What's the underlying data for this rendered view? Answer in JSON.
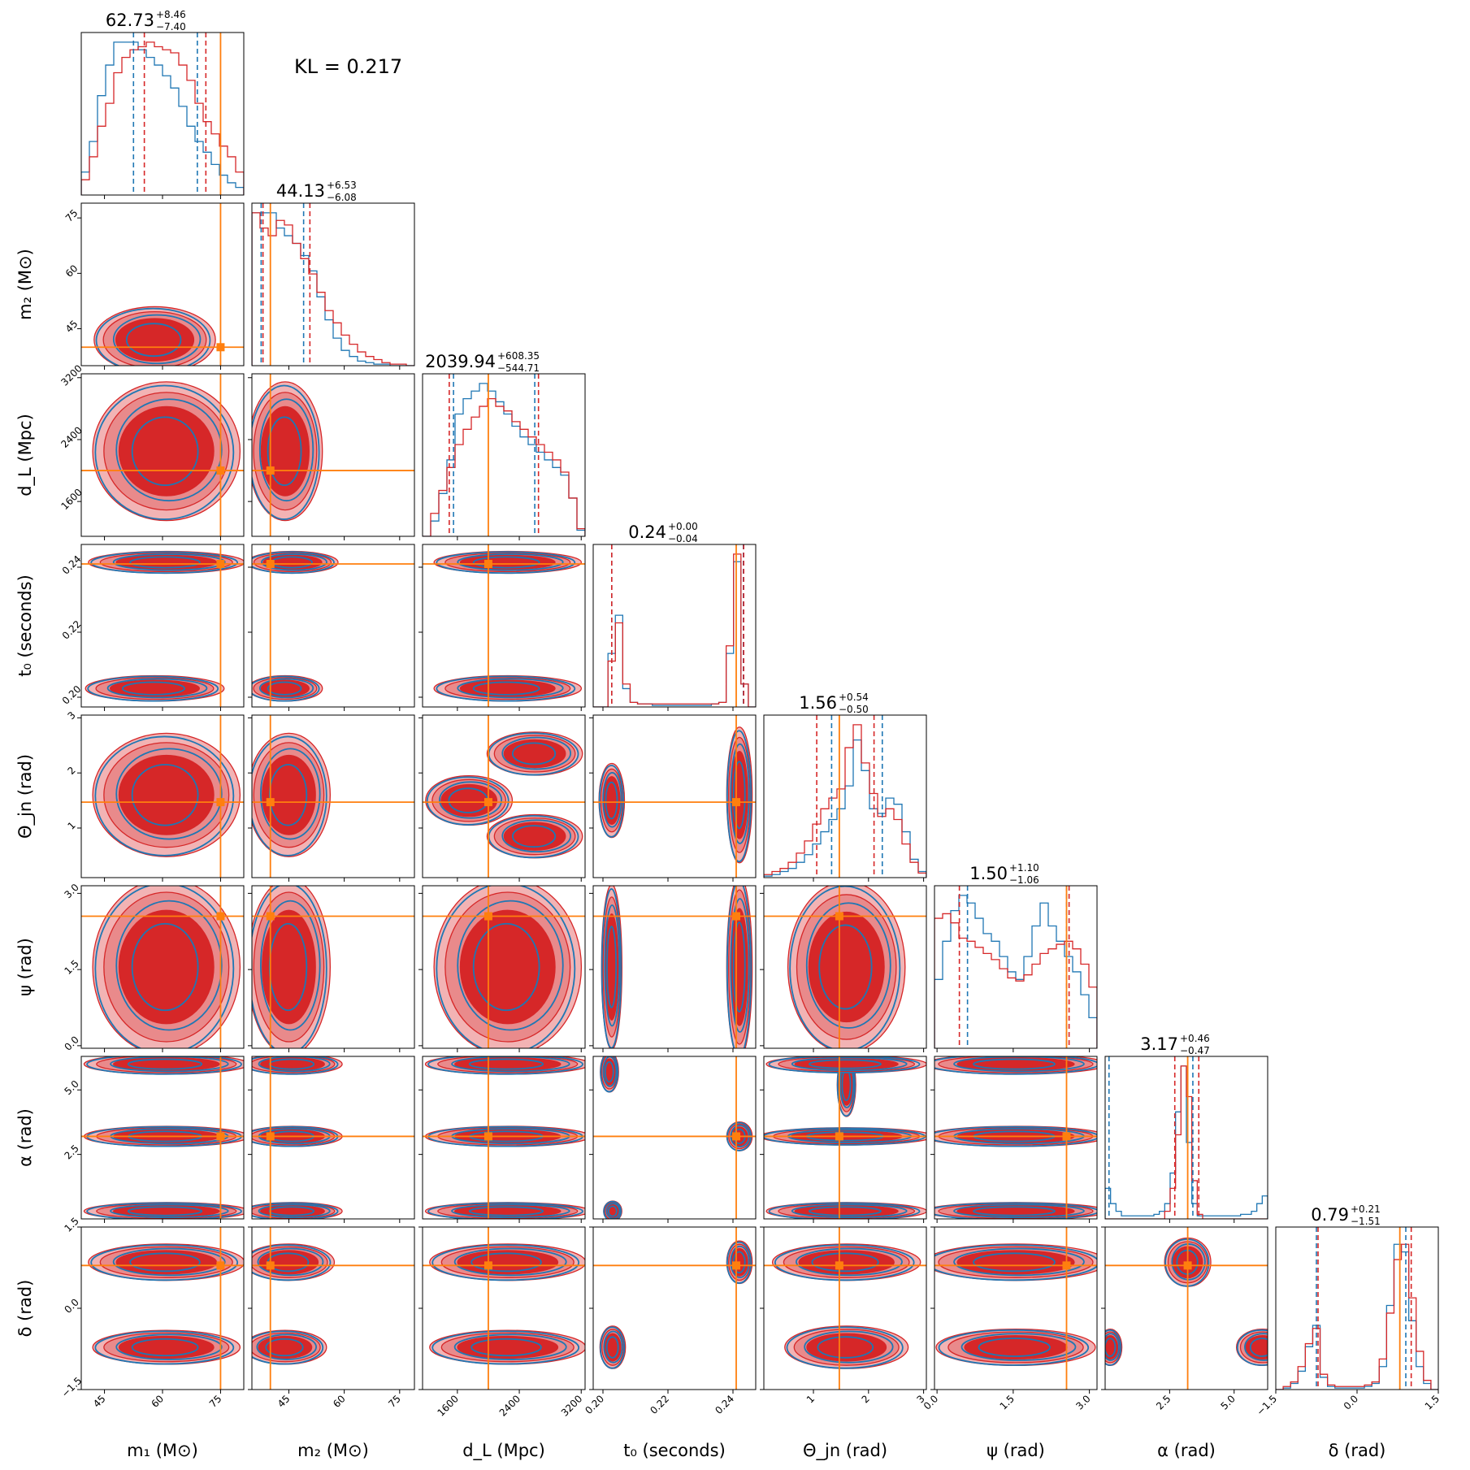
{
  "chart_data": {
    "type": "corner",
    "kl_label": "KL = 0.217",
    "colors": {
      "series_a": "#d62728",
      "series_b": "#1f77b4",
      "truth": "#ff7f0e"
    },
    "parameters": [
      {
        "key": "m1",
        "label": "m₁ (M⊙)",
        "lim": [
          39,
          81
        ],
        "ticks": [
          45,
          60,
          75
        ],
        "tick_labels": [
          "45",
          "60",
          "75"
        ],
        "truth": 75,
        "title": "62.73",
        "plus": "+8.46",
        "minus": "−7.40",
        "q_a": [
          55.3,
          62.7,
          71.2
        ],
        "q_b": [
          52.5,
          60.5,
          69.0
        ]
      },
      {
        "key": "m2",
        "label": "m₂ (M⊙)",
        "lim": [
          35,
          79
        ],
        "ticks": [
          45,
          60,
          75
        ],
        "tick_labels": [
          "45",
          "60",
          "75"
        ],
        "truth": 40,
        "title": "44.13",
        "plus": "+6.53",
        "minus": "−6.08",
        "q_a": [
          38.0,
          44.1,
          50.7
        ],
        "q_b": [
          37.5,
          43.0,
          49.0
        ]
      },
      {
        "key": "dL",
        "label": "d_L (Mpc)",
        "lim": [
          1150,
          3250
        ],
        "ticks": [
          1600,
          2400,
          3200
        ],
        "tick_labels": [
          "1600",
          "2400",
          "3200"
        ],
        "truth": 2000,
        "title": "2039.94",
        "plus": "+608.35",
        "minus": "−544.71",
        "q_a": [
          1495,
          2040,
          2648
        ],
        "q_b": [
          1550,
          2000,
          2600
        ]
      },
      {
        "key": "t0",
        "label": "t₀ (seconds)",
        "lim": [
          0.197,
          0.247
        ],
        "ticks": [
          0.2,
          0.22,
          0.24
        ],
        "tick_labels": [
          "0.20",
          "0.22",
          "0.24"
        ],
        "truth": 0.241,
        "title": "0.24",
        "plus": "+0.00",
        "minus": "−0.04",
        "q_a": [
          0.2027,
          0.2425,
          0.2433
        ],
        "q_b": [
          0.2027,
          0.242,
          0.2432
        ]
      },
      {
        "key": "theta",
        "label": "Θ_jn (rad)",
        "lim": [
          0.1,
          3.05
        ],
        "ticks": [
          1,
          2,
          3
        ],
        "tick_labels": [
          "1",
          "2",
          "3"
        ],
        "truth": 1.47,
        "title": "1.56",
        "plus": "+0.54",
        "minus": "−0.50",
        "q_a": [
          1.06,
          1.56,
          2.1
        ],
        "q_b": [
          1.33,
          1.62,
          2.25
        ]
      },
      {
        "key": "psi",
        "label": "ψ (rad)",
        "lim": [
          -0.05,
          3.15
        ],
        "ticks": [
          0.0,
          1.5,
          3.0
        ],
        "tick_labels": [
          "0.0",
          "1.5",
          "3.0"
        ],
        "truth": 2.55,
        "title": "1.50",
        "plus": "+1.10",
        "minus": "−1.06",
        "q_a": [
          0.44,
          1.5,
          2.6
        ],
        "q_b": [
          0.6,
          1.5,
          2.55
        ]
      },
      {
        "key": "alpha",
        "label": "α (rad)",
        "lim": [
          0.0,
          6.3
        ],
        "ticks": [
          2.5,
          5.0
        ],
        "tick_labels": [
          "2.5",
          "5.0"
        ],
        "truth": 3.2,
        "title": "3.17",
        "plus": "+0.46",
        "minus": "−0.47",
        "q_a": [
          2.7,
          3.17,
          3.63
        ],
        "q_b": [
          0.15,
          3.15,
          3.4
        ]
      },
      {
        "key": "delta",
        "label": "δ (rad)",
        "lim": [
          -1.5,
          1.5
        ],
        "ticks": [
          -1.5,
          0.0,
          1.5
        ],
        "tick_labels": [
          "−1.5",
          "0.0",
          "1.5"
        ],
        "truth": 0.79,
        "title": "0.79",
        "plus": "+0.21",
        "minus": "−1.51",
        "q_a": [
          -0.72,
          0.79,
          1.0
        ],
        "q_b": [
          -0.75,
          0.75,
          0.9
        ]
      }
    ],
    "histograms": [
      {
        "a": [
          0.1,
          0.25,
          0.45,
          0.6,
          0.8,
          0.9,
          0.95,
          0.97,
          1.0,
          0.97,
          0.95,
          0.93,
          0.85,
          0.75,
          0.6,
          0.48,
          0.4,
          0.32,
          0.25,
          0.15
        ],
        "b": [
          0.15,
          0.35,
          0.65,
          0.85,
          1.05,
          1.1,
          1.05,
          0.95,
          0.9,
          0.85,
          0.78,
          0.7,
          0.58,
          0.45,
          0.35,
          0.28,
          0.2,
          0.13,
          0.08,
          0.05
        ]
      },
      {
        "a": [
          1.0,
          0.9,
          0.85,
          0.95,
          0.92,
          0.8,
          0.7,
          0.6,
          0.48,
          0.36,
          0.28,
          0.2,
          0.14,
          0.09,
          0.06,
          0.04,
          0.02,
          0.01,
          0.01,
          0.0
        ],
        "b": [
          1.1,
          1.05,
          1.0,
          0.9,
          0.85,
          0.8,
          0.72,
          0.62,
          0.45,
          0.3,
          0.18,
          0.1,
          0.06,
          0.03,
          0.02,
          0.01,
          0.01,
          0.0,
          0.0,
          0.0
        ]
      },
      {
        "a": [
          0.0,
          0.15,
          0.3,
          0.45,
          0.6,
          0.7,
          0.78,
          0.85,
          0.9,
          0.85,
          0.82,
          0.75,
          0.7,
          0.65,
          0.6,
          0.55,
          0.5,
          0.42,
          0.25,
          0.05
        ],
        "b": [
          0.0,
          0.1,
          0.28,
          0.5,
          0.8,
          0.9,
          0.95,
          1.0,
          0.95,
          0.88,
          0.8,
          0.72,
          0.65,
          0.6,
          0.55,
          0.5,
          0.45,
          0.4,
          0.25,
          0.04
        ]
      },
      {
        "a": [
          0.0,
          0.0,
          0.3,
          0.55,
          0.15,
          0.03,
          0.02,
          0.02,
          0.02,
          0.02,
          0.02,
          0.02,
          0.02,
          0.02,
          0.02,
          0.02,
          0.02,
          0.03,
          0.4,
          1.0,
          0.15,
          0.0
        ],
        "b": [
          0.0,
          0.0,
          0.35,
          0.6,
          0.12,
          0.03,
          0.02,
          0.02,
          0.01,
          0.01,
          0.01,
          0.01,
          0.01,
          0.01,
          0.01,
          0.01,
          0.02,
          0.03,
          0.35,
          0.95,
          0.15,
          0.0
        ]
      },
      {
        "a": [
          0.02,
          0.04,
          0.06,
          0.1,
          0.16,
          0.24,
          0.35,
          0.45,
          0.52,
          0.58,
          0.85,
          1.0,
          0.75,
          0.55,
          0.4,
          0.45,
          0.38,
          0.22,
          0.1,
          0.03
        ],
        "b": [
          0.01,
          0.02,
          0.04,
          0.06,
          0.1,
          0.15,
          0.22,
          0.3,
          0.38,
          0.45,
          0.6,
          0.9,
          0.7,
          0.45,
          0.42,
          0.52,
          0.48,
          0.3,
          0.12,
          0.04
        ]
      },
      {
        "a": [
          0.85,
          0.88,
          0.82,
          0.72,
          0.7,
          0.66,
          0.62,
          0.58,
          0.52,
          0.46,
          0.44,
          0.48,
          0.55,
          0.62,
          0.65,
          0.68,
          0.7,
          0.65,
          0.55,
          0.4
        ],
        "b": [
          0.45,
          0.7,
          0.9,
          1.0,
          0.95,
          0.85,
          0.75,
          0.7,
          0.6,
          0.5,
          0.45,
          0.6,
          0.8,
          0.95,
          0.8,
          0.7,
          0.6,
          0.5,
          0.35,
          0.2
        ]
      },
      {
        "a": [
          0.0,
          0.0,
          0.0,
          0.0,
          0.0,
          0.0,
          0.0,
          0.0,
          0.0,
          0.0,
          0.0,
          0.05,
          0.2,
          0.55,
          1.0,
          0.8,
          0.25,
          0.03,
          0.0,
          0.0,
          0.0,
          0.0,
          0.0,
          0.0,
          0.0,
          0.0,
          0.0,
          0.0,
          0.0,
          0.0
        ],
        "b": [
          0.2,
          0.1,
          0.05,
          0.02,
          0.02,
          0.02,
          0.02,
          0.02,
          0.02,
          0.03,
          0.05,
          0.1,
          0.3,
          0.7,
          1.1,
          0.5,
          0.1,
          0.02,
          0.02,
          0.02,
          0.02,
          0.02,
          0.02,
          0.02,
          0.02,
          0.03,
          0.03,
          0.05,
          0.1,
          0.15
        ]
      },
      {
        "a": [
          0.0,
          0.02,
          0.05,
          0.15,
          0.3,
          0.4,
          0.1,
          0.03,
          0.02,
          0.02,
          0.02,
          0.02,
          0.03,
          0.05,
          0.2,
          0.5,
          0.85,
          0.95,
          0.6,
          0.25,
          0.06,
          0.0
        ],
        "b": [
          0.0,
          0.01,
          0.04,
          0.12,
          0.28,
          0.42,
          0.08,
          0.02,
          0.01,
          0.01,
          0.01,
          0.01,
          0.02,
          0.04,
          0.15,
          0.55,
          0.95,
          0.9,
          0.45,
          0.15,
          0.04,
          0.0
        ]
      }
    ],
    "blobs": [
      {
        "row": 1,
        "col": 0,
        "blobs": [
          {
            "x": 58,
            "y": 42,
            "rx": 14,
            "ry": 8
          }
        ]
      },
      {
        "row": 2,
        "col": 0,
        "blobs": [
          {
            "x": 61,
            "y": 2250,
            "rx": 17,
            "ry": 800
          }
        ]
      },
      {
        "row": 2,
        "col": 1,
        "blobs": [
          {
            "x": 44,
            "y": 2250,
            "rx": 9,
            "ry": 800
          }
        ]
      },
      {
        "row": 3,
        "col": 0,
        "blobs": [
          {
            "x": 61,
            "y": 0.2415,
            "rx": 18,
            "ry": 0.003
          },
          {
            "x": 58,
            "y": 0.2027,
            "rx": 16,
            "ry": 0.0035
          }
        ]
      },
      {
        "row": 3,
        "col": 1,
        "blobs": [
          {
            "x": 46,
            "y": 0.2415,
            "rx": 11,
            "ry": 0.003
          },
          {
            "x": 44,
            "y": 0.2027,
            "rx": 9,
            "ry": 0.0035
          }
        ]
      },
      {
        "row": 3,
        "col": 2,
        "blobs": [
          {
            "x": 2250,
            "y": 0.2415,
            "rx": 850,
            "ry": 0.003
          },
          {
            "x": 2250,
            "y": 0.2027,
            "rx": 850,
            "ry": 0.0035
          }
        ]
      },
      {
        "row": 4,
        "col": 0,
        "blobs": [
          {
            "x": 61,
            "y": 1.6,
            "rx": 17,
            "ry": 1.0
          }
        ]
      },
      {
        "row": 4,
        "col": 1,
        "blobs": [
          {
            "x": 45,
            "y": 1.6,
            "rx": 10,
            "ry": 1.0
          }
        ]
      },
      {
        "row": 4,
        "col": 2,
        "blobs": [
          {
            "x": 1750,
            "y": 1.5,
            "rx": 500,
            "ry": 0.4
          },
          {
            "x": 2600,
            "y": 2.35,
            "rx": 550,
            "ry": 0.35
          },
          {
            "x": 2600,
            "y": 0.85,
            "rx": 550,
            "ry": 0.35
          }
        ]
      },
      {
        "row": 4,
        "col": 3,
        "blobs": [
          {
            "x": 0.2027,
            "y": 1.5,
            "rx": 0.0035,
            "ry": 0.6
          },
          {
            "x": 0.242,
            "y": 1.6,
            "rx": 0.0035,
            "ry": 1.1
          }
        ]
      },
      {
        "row": 5,
        "col": 0,
        "blobs": [
          {
            "x": 61,
            "y": 1.55,
            "rx": 17,
            "ry": 1.55
          }
        ]
      },
      {
        "row": 5,
        "col": 1,
        "blobs": [
          {
            "x": 45,
            "y": 1.55,
            "rx": 10,
            "ry": 1.55
          }
        ]
      },
      {
        "row": 5,
        "col": 2,
        "blobs": [
          {
            "x": 2250,
            "y": 1.55,
            "rx": 850,
            "ry": 1.55
          }
        ]
      },
      {
        "row": 5,
        "col": 3,
        "blobs": [
          {
            "x": 0.2027,
            "y": 1.55,
            "rx": 0.0028,
            "ry": 1.45
          },
          {
            "x": 0.242,
            "y": 1.55,
            "rx": 0.0035,
            "ry": 1.6
          }
        ]
      },
      {
        "row": 5,
        "col": 4,
        "blobs": [
          {
            "x": 1.6,
            "y": 1.55,
            "rx": 0.95,
            "ry": 1.5
          }
        ]
      },
      {
        "row": 6,
        "col": 0,
        "blobs": [
          {
            "x": 61,
            "y": 3.2,
            "rx": 19,
            "ry": 0.35
          },
          {
            "x": 61,
            "y": 6.0,
            "rx": 19,
            "ry": 0.35
          },
          {
            "x": 61,
            "y": 0.3,
            "rx": 19,
            "ry": 0.3
          }
        ]
      },
      {
        "row": 6,
        "col": 1,
        "blobs": [
          {
            "x": 46,
            "y": 3.2,
            "rx": 12,
            "ry": 0.35
          },
          {
            "x": 46,
            "y": 6.0,
            "rx": 12,
            "ry": 0.35
          },
          {
            "x": 46,
            "y": 0.3,
            "rx": 12,
            "ry": 0.3
          }
        ]
      },
      {
        "row": 6,
        "col": 2,
        "blobs": [
          {
            "x": 2250,
            "y": 3.2,
            "rx": 950,
            "ry": 0.35
          },
          {
            "x": 2250,
            "y": 6.0,
            "rx": 950,
            "ry": 0.35
          },
          {
            "x": 2250,
            "y": 0.3,
            "rx": 950,
            "ry": 0.3
          }
        ]
      },
      {
        "row": 6,
        "col": 3,
        "blobs": [
          {
            "x": 0.242,
            "y": 3.2,
            "rx": 0.0035,
            "ry": 0.5
          },
          {
            "x": 0.202,
            "y": 5.7,
            "rx": 0.0025,
            "ry": 0.7
          },
          {
            "x": 0.203,
            "y": 0.3,
            "rx": 0.0025,
            "ry": 0.35
          }
        ]
      },
      {
        "row": 6,
        "col": 4,
        "blobs": [
          {
            "x": 1.6,
            "y": 3.2,
            "rx": 1.4,
            "ry": 0.3
          },
          {
            "x": 1.6,
            "y": 5.2,
            "rx": 0.15,
            "ry": 1.1
          },
          {
            "x": 1.6,
            "y": 6.0,
            "rx": 1.3,
            "ry": 0.3
          },
          {
            "x": 1.6,
            "y": 0.3,
            "rx": 1.3,
            "ry": 0.3
          }
        ]
      },
      {
        "row": 6,
        "col": 5,
        "blobs": [
          {
            "x": 1.55,
            "y": 3.2,
            "rx": 1.6,
            "ry": 0.35
          },
          {
            "x": 1.55,
            "y": 6.0,
            "rx": 1.6,
            "ry": 0.35
          },
          {
            "x": 1.55,
            "y": 0.3,
            "rx": 1.6,
            "ry": 0.3
          }
        ]
      },
      {
        "row": 7,
        "col": 0,
        "blobs": [
          {
            "x": 61,
            "y": 0.85,
            "rx": 18,
            "ry": 0.3
          },
          {
            "x": 61,
            "y": -0.72,
            "rx": 17,
            "ry": 0.28
          }
        ]
      },
      {
        "row": 7,
        "col": 1,
        "blobs": [
          {
            "x": 45,
            "y": 0.85,
            "rx": 11,
            "ry": 0.3
          },
          {
            "x": 44,
            "y": -0.72,
            "rx": 10,
            "ry": 0.28
          }
        ]
      },
      {
        "row": 7,
        "col": 2,
        "blobs": [
          {
            "x": 2250,
            "y": 0.85,
            "rx": 900,
            "ry": 0.3
          },
          {
            "x": 2250,
            "y": -0.72,
            "rx": 900,
            "ry": 0.28
          }
        ]
      },
      {
        "row": 7,
        "col": 3,
        "blobs": [
          {
            "x": 0.242,
            "y": 0.85,
            "rx": 0.0035,
            "ry": 0.35
          },
          {
            "x": 0.203,
            "y": -0.72,
            "rx": 0.0035,
            "ry": 0.35
          }
        ]
      },
      {
        "row": 7,
        "col": 4,
        "blobs": [
          {
            "x": 1.6,
            "y": 0.85,
            "rx": 1.2,
            "ry": 0.3
          },
          {
            "x": 1.6,
            "y": -0.72,
            "rx": 1.0,
            "ry": 0.35
          }
        ]
      },
      {
        "row": 7,
        "col": 5,
        "blobs": [
          {
            "x": 1.55,
            "y": 0.85,
            "rx": 1.6,
            "ry": 0.3
          },
          {
            "x": 1.55,
            "y": -0.72,
            "rx": 1.4,
            "ry": 0.3
          }
        ]
      },
      {
        "row": 7,
        "col": 6,
        "blobs": [
          {
            "x": 3.2,
            "y": 0.85,
            "rx": 0.8,
            "ry": 0.4
          },
          {
            "x": 0.2,
            "y": -0.72,
            "rx": 0.4,
            "ry": 0.3
          },
          {
            "x": 6.1,
            "y": -0.72,
            "rx": 0.9,
            "ry": 0.3
          }
        ]
      }
    ]
  }
}
